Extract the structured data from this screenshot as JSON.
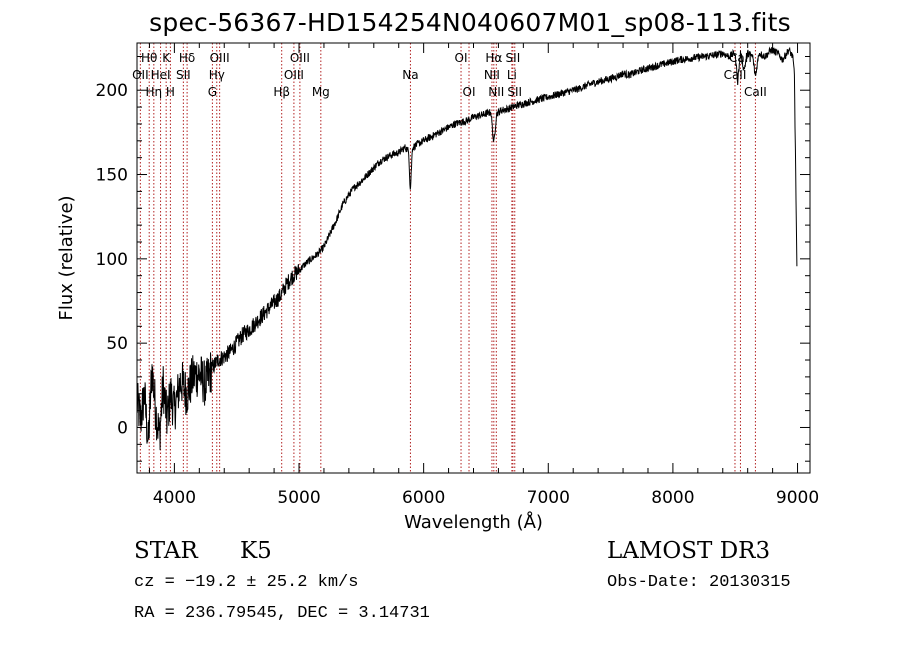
{
  "header": {
    "title": "spec-56367-HD154254N040607M01_sp08-113.fits"
  },
  "info": {
    "object_class": "STAR",
    "subclass": "K5",
    "survey": "LAMOST DR3",
    "cz": "cz = −19.2 ± 25.2 km/s",
    "obs_date": "Obs-Date: 20130315",
    "ra_dec": "RA = 236.79545, DEC =   3.14731"
  },
  "chart_data": {
    "type": "line",
    "title": "spec-56367-HD154254N040607M01_sp08-113.fits",
    "xlabel": "Wavelength (Å)",
    "ylabel": "Flux (relative)",
    "xlim": [
      3700,
      9100
    ],
    "ylim": [
      -27,
      228
    ],
    "xticks": [
      4000,
      5000,
      6000,
      7000,
      8000,
      9000
    ],
    "yticks": [
      0,
      50,
      100,
      150,
      200
    ],
    "colors": {
      "spectrum": "#000000",
      "lines": "#b22222",
      "axes": "#000000"
    },
    "spectral_lines": [
      {
        "label": "Hθ",
        "wavelength": 3798,
        "row": 0
      },
      {
        "label": "OII",
        "wavelength": 3727,
        "row": 1
      },
      {
        "label": "Hη",
        "wavelength": 3835,
        "row": 2
      },
      {
        "label": "K",
        "wavelength": 3934,
        "row": 0
      },
      {
        "label": "HeI",
        "wavelength": 3889,
        "row": 1
      },
      {
        "label": "H",
        "wavelength": 3968,
        "row": 2
      },
      {
        "label": "Hδ",
        "wavelength": 4102,
        "row": 0
      },
      {
        "label": "SII",
        "wavelength": 4072,
        "row": 1
      },
      {
        "label": "OIII",
        "wavelength": 4363,
        "row": 0
      },
      {
        "label": "Hγ",
        "wavelength": 4340,
        "row": 1
      },
      {
        "label": "G",
        "wavelength": 4305,
        "row": 2
      },
      {
        "label": "Hβ",
        "wavelength": 4861,
        "row": 2
      },
      {
        "label": "OIII",
        "wavelength": 5007,
        "row": 0
      },
      {
        "label": "OIII",
        "wavelength": 4959,
        "row": 1
      },
      {
        "label": "Mg",
        "wavelength": 5175,
        "row": 2
      },
      {
        "label": "Na",
        "wavelength": 5894,
        "row": 1
      },
      {
        "label": "OI",
        "wavelength": 6300,
        "row": 0
      },
      {
        "label": "OI",
        "wavelength": 6364,
        "row": 2
      },
      {
        "label": "Hα",
        "wavelength": 6563,
        "row": 0
      },
      {
        "label": "SII",
        "wavelength": 6716,
        "row": 0
      },
      {
        "label": "NII",
        "wavelength": 6548,
        "row": 1
      },
      {
        "label": "Li",
        "wavelength": 6708,
        "row": 1
      },
      {
        "label": "NII",
        "wavelength": 6583,
        "row": 2
      },
      {
        "label": "SII",
        "wavelength": 6731,
        "row": 2
      },
      {
        "label": "CaII",
        "wavelength": 8542,
        "row": 0
      },
      {
        "label": "CaII",
        "wavelength": 8498,
        "row": 1
      },
      {
        "label": "CaII",
        "wavelength": 8662,
        "row": 2
      }
    ],
    "series": [
      {
        "name": "spectrum",
        "x": [
          3700,
          3730,
          3760,
          3790,
          3820,
          3850,
          3880,
          3910,
          3940,
          3970,
          4000,
          4050,
          4100,
          4150,
          4200,
          4250,
          4300,
          4350,
          4400,
          4450,
          4500,
          4550,
          4600,
          4650,
          4700,
          4750,
          4800,
          4850,
          4880,
          4900,
          4950,
          5000,
          5050,
          5100,
          5150,
          5200,
          5250,
          5300,
          5350,
          5400,
          5450,
          5500,
          5550,
          5600,
          5650,
          5700,
          5750,
          5800,
          5850,
          5880,
          5893,
          5910,
          5950,
          6000,
          6050,
          6100,
          6150,
          6200,
          6250,
          6300,
          6350,
          6400,
          6450,
          6500,
          6540,
          6563,
          6585,
          6620,
          6680,
          6750,
          6850,
          6950,
          7050,
          7150,
          7250,
          7350,
          7450,
          7550,
          7600,
          7650,
          7750,
          7850,
          7950,
          8050,
          8150,
          8250,
          8350,
          8400,
          8450,
          8498,
          8520,
          8542,
          8570,
          8600,
          8640,
          8662,
          8690,
          8740,
          8790,
          8840,
          8880,
          8930,
          8960,
          8975,
          8985,
          8995
        ],
        "y": [
          15,
          5,
          20,
          -10,
          35,
          10,
          -5,
          25,
          5,
          20,
          10,
          28,
          20,
          30,
          32,
          25,
          35,
          40,
          42,
          45,
          50,
          55,
          58,
          62,
          66,
          70,
          74,
          78,
          82,
          85,
          90,
          93,
          97,
          100,
          103,
          107,
          115,
          123,
          132,
          138,
          143,
          146,
          150,
          154,
          158,
          160,
          162,
          163,
          166,
          164,
          140,
          166,
          168,
          170,
          172,
          174,
          176,
          178,
          180,
          181,
          182,
          184,
          185,
          186,
          187,
          168,
          186,
          188,
          189,
          191,
          193,
          195,
          197,
          199,
          201,
          204,
          206,
          208,
          210,
          209,
          212,
          214,
          216,
          218,
          219,
          220,
          221,
          222,
          220,
          222,
          205,
          222,
          212,
          222,
          220,
          208,
          222,
          220,
          224,
          222,
          218,
          224,
          220,
          210,
          150,
          95
        ]
      }
    ]
  }
}
